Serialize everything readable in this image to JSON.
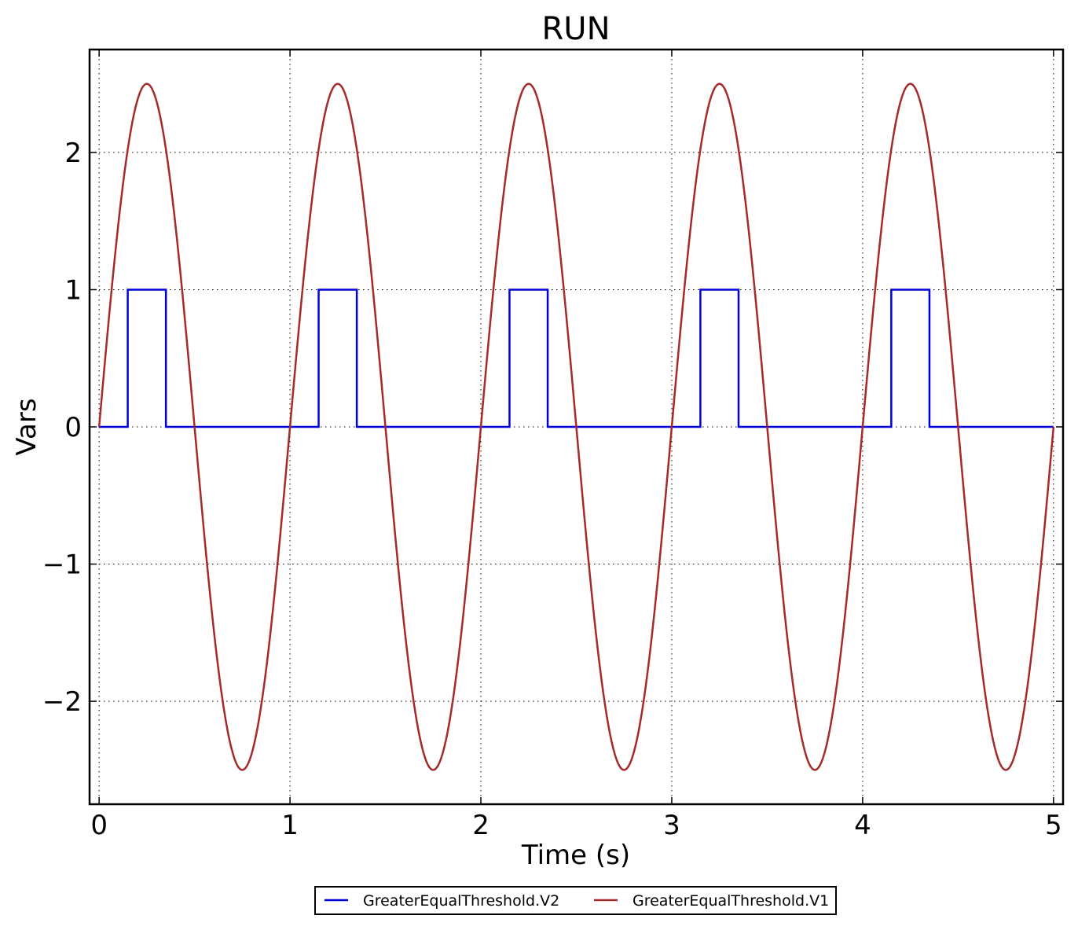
{
  "chart_data": {
    "type": "line",
    "title": "RUN",
    "xlabel": "Time (s)",
    "ylabel": "Vars",
    "xlim": [
      -0.05,
      5.05
    ],
    "ylim": [
      -2.75,
      2.75
    ],
    "xticks": [
      0,
      1,
      2,
      3,
      4,
      5
    ],
    "xtick_labels": [
      "0",
      "1",
      "2",
      "3",
      "4",
      "5"
    ],
    "yticks": [
      -2,
      -1,
      0,
      1,
      2
    ],
    "ytick_labels": [
      "−2",
      "−1",
      "0",
      "1",
      "2"
    ],
    "grid": true,
    "legend_position": "bottom-center",
    "series": [
      {
        "name": "GreaterEqualThreshold.V2",
        "color": "#0000dd",
        "style": "step",
        "x": [
          0,
          0.15,
          0.15,
          0.35,
          0.35,
          1.15,
          1.15,
          1.35,
          1.35,
          2.15,
          2.15,
          2.35,
          2.35,
          3.15,
          3.15,
          3.35,
          3.35,
          4.15,
          4.15,
          4.35,
          4.35,
          5.0
        ],
        "y": [
          0,
          0,
          1,
          1,
          0,
          0,
          1,
          1,
          0,
          0,
          1,
          1,
          0,
          0,
          1,
          1,
          0,
          0,
          1,
          1,
          0,
          0
        ]
      },
      {
        "name": "GreaterEqualThreshold.V1",
        "color": "#a52a2a",
        "style": "line",
        "function": "2.5*sin(2*pi*t)",
        "x": [
          0,
          0.125,
          0.25,
          0.375,
          0.5,
          0.625,
          0.75,
          0.875,
          1.0,
          1.125,
          1.25,
          1.375,
          1.5,
          1.625,
          1.75,
          1.875,
          2.0,
          2.125,
          2.25,
          2.375,
          2.5,
          2.625,
          2.75,
          2.875,
          3.0,
          3.125,
          3.25,
          3.375,
          3.5,
          3.625,
          3.75,
          3.875,
          4.0,
          4.125,
          4.25,
          4.375,
          4.5,
          4.625,
          4.75,
          4.875,
          5.0
        ],
        "y": [
          0,
          1.77,
          2.5,
          1.77,
          0,
          -1.77,
          -2.5,
          -1.77,
          0,
          1.77,
          2.5,
          1.77,
          0,
          -1.77,
          -2.5,
          -1.77,
          0,
          1.77,
          2.5,
          1.77,
          0,
          -1.77,
          -2.5,
          -1.77,
          0,
          1.77,
          2.5,
          1.77,
          0,
          -1.77,
          -2.5,
          -1.77,
          0,
          1.77,
          2.5,
          1.77,
          0,
          -1.77,
          -2.5,
          -1.77,
          0
        ]
      }
    ]
  }
}
